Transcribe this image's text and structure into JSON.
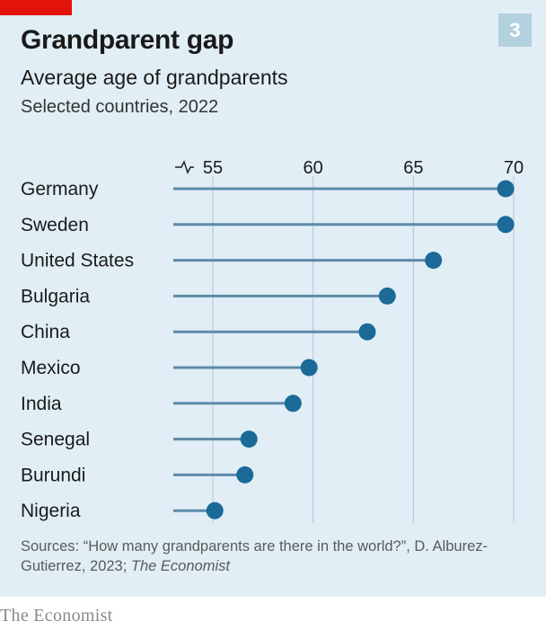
{
  "header": {
    "title": "Grandparent gap",
    "subtitle": "Average age of grandparents",
    "subsubtitle": "Selected countries, 2022",
    "badge": "3"
  },
  "chart_data": {
    "type": "dot",
    "title": "Grandparent gap",
    "subtitle": "Average age of grandparents",
    "xlim": [
      53,
      70
    ],
    "ticks": [
      55,
      60,
      65,
      70
    ],
    "tick_labels": [
      "55",
      "60",
      "65",
      "70"
    ],
    "axis_break": true,
    "categories": [
      "Germany",
      "Sweden",
      "United States",
      "Bulgaria",
      "China",
      "Mexico",
      "India",
      "Senegal",
      "Burundi",
      "Nigeria"
    ],
    "values": [
      69.6,
      69.6,
      66.0,
      63.7,
      62.7,
      59.8,
      59.0,
      56.8,
      56.6,
      55.1
    ],
    "colors": {
      "dot": "#1b6a98",
      "line": "#5d8aa8",
      "grid": "#b8ccd8"
    }
  },
  "footer": {
    "source_prefix": "Sources: “How many grandparents are there in the world?”, D. Alburez-Gutierrez, 2023; ",
    "source_italic": "The Economist",
    "brand": "The Economist"
  }
}
